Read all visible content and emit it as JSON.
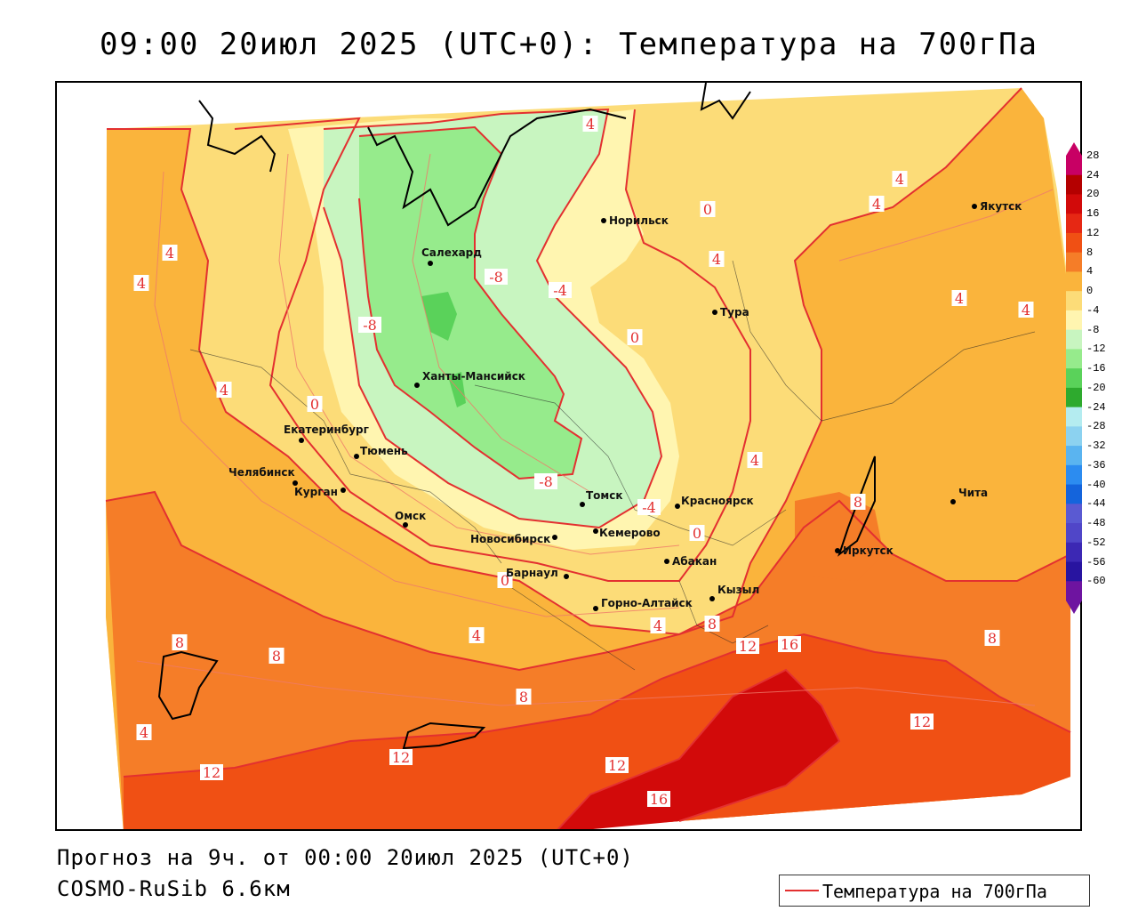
{
  "title": "09:00 20июл 2025 (UTC+0): Температура на 700гПа",
  "footer": {
    "forecast": "Прогноз на 9ч. от 00:00 20июл 2025 (UTC+0)",
    "model": "COSMO-RuSib 6.6км"
  },
  "legend": {
    "label": "Температура на 700гПа",
    "line_color": "#e33030"
  },
  "colorbar": {
    "levels": [
      "28",
      "24",
      "20",
      "16",
      "12",
      "8",
      "4",
      "0",
      "-4",
      "-8",
      "-12",
      "-16",
      "-20",
      "-24",
      "-28",
      "-32",
      "-36",
      "-40",
      "-44",
      "-48",
      "-52",
      "-56",
      "-60"
    ],
    "colors": [
      "#c80064",
      "#b40000",
      "#d20a0a",
      "#e62814",
      "#f05014",
      "#f57d28",
      "#fab43c",
      "#fcdc78",
      "#fff5b0",
      "#c8f5c0",
      "#96eb8c",
      "#5ad25a",
      "#2eaa2e",
      "#b4ecf0",
      "#8cd2f0",
      "#5ab4f0",
      "#2c8cf0",
      "#1464dc",
      "#5a5ad2",
      "#5046c8",
      "#3c28b4",
      "#2814a0",
      "#6e14a0"
    ]
  },
  "cities": [
    {
      "name": "Норильск"
    },
    {
      "name": "Якутск"
    },
    {
      "name": "Салехард"
    },
    {
      "name": "Тура"
    },
    {
      "name": "Ханты-Мансийск"
    },
    {
      "name": "Екатеринбург"
    },
    {
      "name": "Тюмень"
    },
    {
      "name": "Челябинск"
    },
    {
      "name": "Курган"
    },
    {
      "name": "Томск"
    },
    {
      "name": "Красноярск"
    },
    {
      "name": "Омск"
    },
    {
      "name": "Новосибирск"
    },
    {
      "name": "Кемерово"
    },
    {
      "name": "Абакан"
    },
    {
      "name": "Барнаул"
    },
    {
      "name": "Иркутск"
    },
    {
      "name": "Чита"
    },
    {
      "name": "Кызыл"
    },
    {
      "name": "Горно-Алтайск"
    }
  ],
  "isotherm_labels": [
    "4",
    "4",
    "4",
    "0",
    "4",
    "4",
    "4",
    "4",
    "4",
    "-8",
    "-4",
    "0",
    "-8",
    "4",
    "0",
    "-8",
    "-4",
    "0",
    "4",
    "8",
    "0",
    "4",
    "4",
    "8",
    "12",
    "16",
    "8",
    "8",
    "8",
    "8",
    "12",
    "12",
    "12",
    "12",
    "16",
    "4"
  ]
}
